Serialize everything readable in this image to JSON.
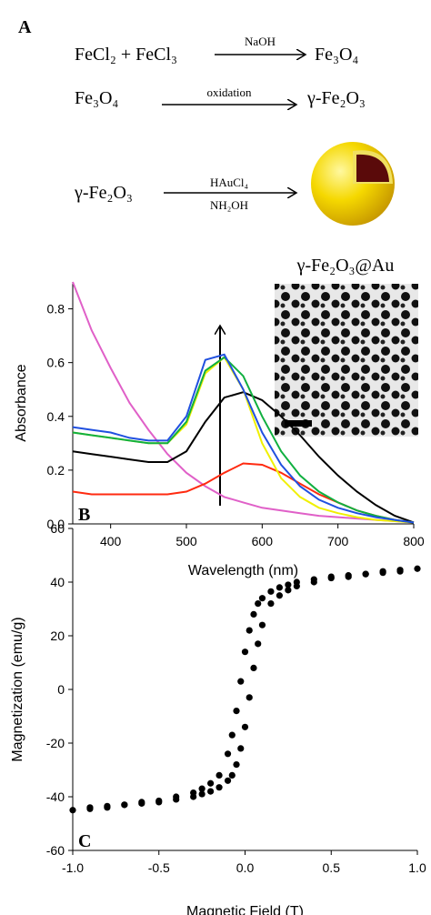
{
  "scheme": {
    "panel_label": "A",
    "row1": {
      "left": "FeCl₂ + FeCl₃",
      "reagent": "NaOH",
      "right": "Fe₃O₄"
    },
    "row2": {
      "left": "Fe₃O₄",
      "reagent": "oxidation",
      "right": "γ-Fe₂O₃"
    },
    "row3": {
      "left": "γ-Fe₂O₃",
      "reagent_top": "HAuCl₄",
      "reagent_bottom": "NH₂OH",
      "product": "γ-Fe₂O₃@Au"
    }
  },
  "chart_data": [
    {
      "type": "line",
      "panel_label": "B",
      "xlabel": "Wavelength (nm)",
      "ylabel": "Absorbance",
      "x": [
        350,
        375,
        400,
        425,
        450,
        475,
        500,
        525,
        550,
        575,
        600,
        625,
        650,
        675,
        700,
        725,
        750,
        775,
        800
      ],
      "series": [
        {
          "color": "#e060c8",
          "values": [
            0.9,
            0.72,
            0.58,
            0.45,
            0.35,
            0.26,
            0.19,
            0.14,
            0.1,
            0.08,
            0.06,
            0.05,
            0.04,
            0.03,
            0.025,
            0.02,
            0.015,
            0.01,
            0.005
          ]
        },
        {
          "color": "#ff2a10",
          "values": [
            0.12,
            0.11,
            0.11,
            0.11,
            0.11,
            0.11,
            0.12,
            0.15,
            0.19,
            0.225,
            0.22,
            0.19,
            0.15,
            0.11,
            0.08,
            0.05,
            0.03,
            0.015,
            0.005
          ]
        },
        {
          "color": "#000000",
          "values": [
            0.27,
            0.26,
            0.25,
            0.24,
            0.23,
            0.23,
            0.27,
            0.38,
            0.47,
            0.49,
            0.46,
            0.4,
            0.33,
            0.25,
            0.18,
            0.12,
            0.07,
            0.03,
            0.005
          ]
        },
        {
          "color": "#f0f000",
          "values": [
            0.34,
            0.33,
            0.32,
            0.31,
            0.3,
            0.3,
            0.37,
            0.56,
            0.62,
            0.5,
            0.3,
            0.17,
            0.1,
            0.06,
            0.04,
            0.025,
            0.015,
            0.01,
            0.005
          ]
        },
        {
          "color": "#10b040",
          "values": [
            0.34,
            0.33,
            0.32,
            0.31,
            0.3,
            0.3,
            0.38,
            0.57,
            0.62,
            0.55,
            0.4,
            0.27,
            0.18,
            0.12,
            0.08,
            0.05,
            0.03,
            0.015,
            0.005
          ]
        },
        {
          "color": "#2050e0",
          "values": [
            0.36,
            0.35,
            0.34,
            0.32,
            0.31,
            0.31,
            0.4,
            0.61,
            0.63,
            0.5,
            0.34,
            0.22,
            0.14,
            0.09,
            0.06,
            0.04,
            0.025,
            0.015,
            0.005
          ]
        }
      ],
      "xlim": [
        350,
        800
      ],
      "xticks": [
        400,
        500,
        600,
        700,
        800
      ],
      "ylim": [
        0,
        0.9
      ],
      "yticks": [
        {
          "value": 0,
          "label": "0.0"
        },
        {
          "value": 0.2,
          "label": "0.2"
        },
        {
          "value": 0.4,
          "label": "0.4"
        },
        {
          "value": 0.6,
          "label": "0.6"
        },
        {
          "value": 0.8,
          "label": "0.8"
        }
      ]
    },
    {
      "type": "scatter",
      "panel_label": "C",
      "xlabel": "Magnetic Field (T)",
      "ylabel": "Magnetization (emu/g)",
      "series": [
        {
          "color": "#000000",
          "x": [
            -1.0,
            -0.9,
            -0.8,
            -0.7,
            -0.6,
            -0.5,
            -0.4,
            -0.3,
            -0.25,
            -0.2,
            -0.15,
            -0.1,
            -0.075,
            -0.05,
            -0.025,
            0,
            0.025,
            0.05,
            0.075,
            0.1,
            0.15,
            0.2,
            0.25,
            0.3,
            0.4,
            0.5,
            0.6,
            0.7,
            0.8,
            0.9,
            1.0
          ],
          "values": [
            -45,
            -44,
            -43.5,
            -43,
            -42,
            -41.5,
            -40,
            -38.5,
            -37,
            -35,
            -32,
            -24,
            -17,
            -8,
            3,
            14,
            22,
            28,
            32,
            34,
            36.5,
            38,
            39,
            40,
            41,
            42,
            42.5,
            43,
            44,
            44.5,
            45
          ]
        },
        {
          "color": "#000000",
          "x": [
            -0.9,
            -0.8,
            -0.7,
            -0.6,
            -0.5,
            -0.4,
            -0.3,
            -0.25,
            -0.2,
            -0.15,
            -0.1,
            -0.075,
            -0.05,
            -0.025,
            0,
            0.025,
            0.05,
            0.075,
            0.1,
            0.15,
            0.2,
            0.25,
            0.3,
            0.4,
            0.5,
            0.6,
            0.7,
            0.8,
            0.9
          ],
          "values": [
            -44.5,
            -44,
            -43,
            -42.5,
            -42,
            -41,
            -40,
            -39,
            -38,
            -36.5,
            -34,
            -32,
            -28,
            -22,
            -14,
            -3,
            8,
            17,
            24,
            32,
            35,
            37,
            38.5,
            40,
            41.5,
            42,
            43,
            43.5,
            44
          ]
        }
      ],
      "xlim": [
        -1,
        1
      ],
      "xticks": [
        {
          "value": -1,
          "label": "-1.0"
        },
        {
          "value": -0.5,
          "label": "-0.5"
        },
        {
          "value": 0,
          "label": "0.0"
        },
        {
          "value": 0.5,
          "label": "0.5"
        },
        {
          "value": 1,
          "label": "1.0"
        }
      ],
      "ylim": [
        -60,
        60
      ],
      "yticks": [
        -60,
        -40,
        -20,
        0,
        20,
        40,
        60
      ]
    }
  ]
}
